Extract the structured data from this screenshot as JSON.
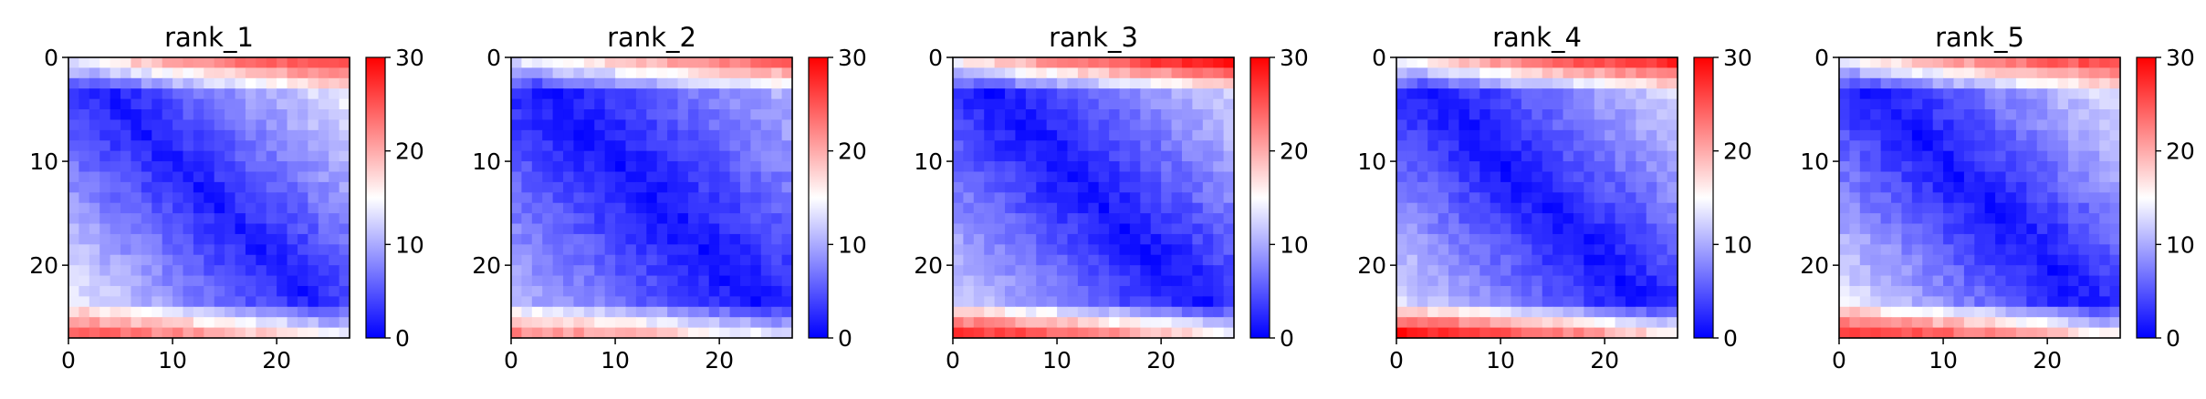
{
  "chart_data": [
    {
      "type": "heatmap",
      "title": "rank_1",
      "x_ticks": [
        "0",
        "10",
        "20"
      ],
      "y_ticks": [
        "0",
        "10",
        "20"
      ],
      "xlim": [
        0,
        27
      ],
      "ylim": [
        27,
        0
      ],
      "size": 27,
      "colorbar": {
        "min": 0,
        "max": 30,
        "ticks": [
          "0",
          "10",
          "20",
          "30"
        ],
        "colormap": "bwr"
      },
      "pattern": {
        "diag_min": 1.5,
        "spread_factor": 0.55,
        "top_edge_max": 26,
        "bottom_edge_max": 24
      }
    },
    {
      "type": "heatmap",
      "title": "rank_2",
      "x_ticks": [
        "0",
        "10",
        "20"
      ],
      "y_ticks": [
        "0",
        "10",
        "20"
      ],
      "xlim": [
        0,
        27
      ],
      "ylim": [
        27,
        0
      ],
      "size": 27,
      "colorbar": {
        "min": 0,
        "max": 30,
        "ticks": [
          "0",
          "10",
          "20",
          "30"
        ],
        "colormap": "bwr"
      },
      "pattern": {
        "diag_min": 1.0,
        "spread_factor": 0.42,
        "top_edge_max": 24,
        "bottom_edge_max": 22
      }
    },
    {
      "type": "heatmap",
      "title": "rank_3",
      "x_ticks": [
        "0",
        "10",
        "20"
      ],
      "y_ticks": [
        "0",
        "10",
        "20"
      ],
      "xlim": [
        0,
        27
      ],
      "ylim": [
        27,
        0
      ],
      "size": 27,
      "colorbar": {
        "min": 0,
        "max": 30,
        "ticks": [
          "0",
          "10",
          "20",
          "30"
        ],
        "colormap": "bwr"
      },
      "pattern": {
        "diag_min": 1.0,
        "spread_factor": 0.5,
        "top_edge_max": 29,
        "bottom_edge_max": 27
      }
    },
    {
      "type": "heatmap",
      "title": "rank_4",
      "x_ticks": [
        "0",
        "10",
        "20"
      ],
      "y_ticks": [
        "0",
        "10",
        "20"
      ],
      "xlim": [
        0,
        27
      ],
      "ylim": [
        27,
        0
      ],
      "size": 27,
      "colorbar": {
        "min": 0,
        "max": 30,
        "ticks": [
          "0",
          "10",
          "20",
          "30"
        ],
        "colormap": "bwr"
      },
      "pattern": {
        "diag_min": 1.0,
        "spread_factor": 0.52,
        "top_edge_max": 28,
        "bottom_edge_max": 29
      }
    },
    {
      "type": "heatmap",
      "title": "rank_5",
      "x_ticks": [
        "0",
        "10",
        "20"
      ],
      "y_ticks": [
        "0",
        "10",
        "20"
      ],
      "xlim": [
        0,
        27
      ],
      "ylim": [
        27,
        0
      ],
      "size": 27,
      "colorbar": {
        "min": 0,
        "max": 30,
        "ticks": [
          "0",
          "10",
          "20",
          "30"
        ],
        "colormap": "bwr"
      },
      "pattern": {
        "diag_min": 1.0,
        "spread_factor": 0.55,
        "top_edge_max": 26,
        "bottom_edge_max": 27
      }
    }
  ]
}
